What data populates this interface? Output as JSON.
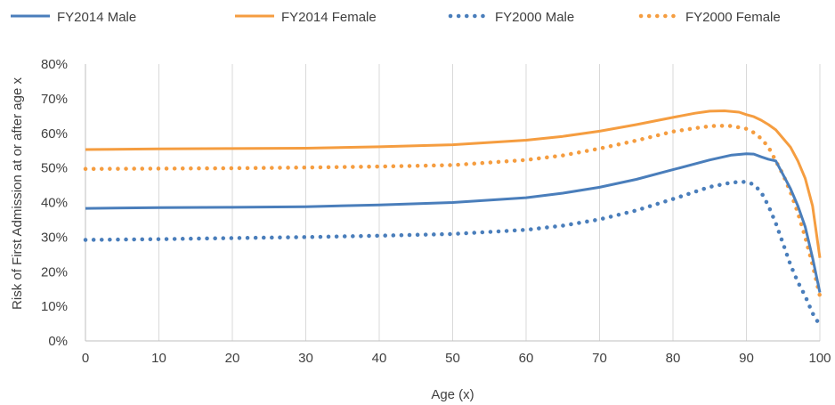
{
  "chart_data": {
    "type": "line",
    "xlabel": "Age (x)",
    "ylabel": "Risk of First Admission at or after age x",
    "xlim": [
      0,
      100
    ],
    "ylim": [
      0,
      0.8
    ],
    "x_ticks": [
      0,
      10,
      20,
      30,
      40,
      50,
      60,
      70,
      80,
      90,
      100
    ],
    "y_ticks": [
      0,
      0.1,
      0.2,
      0.3,
      0.4,
      0.5,
      0.6,
      0.7,
      0.8
    ],
    "x_tick_labels": [
      "0",
      "10",
      "20",
      "30",
      "40",
      "50",
      "60",
      "70",
      "80",
      "90",
      "100"
    ],
    "y_tick_labels": [
      "0%",
      "10%",
      "20%",
      "30%",
      "40%",
      "50%",
      "60%",
      "70%",
      "80%"
    ],
    "grid": "vertical",
    "legend": "top",
    "series": [
      {
        "name": "FY2014 Male",
        "color": "#4a7ebb",
        "style": "solid",
        "points": [
          [
            0,
            0.383
          ],
          [
            10,
            0.385
          ],
          [
            20,
            0.386
          ],
          [
            30,
            0.388
          ],
          [
            40,
            0.393
          ],
          [
            50,
            0.4
          ],
          [
            60,
            0.414
          ],
          [
            65,
            0.427
          ],
          [
            70,
            0.444
          ],
          [
            75,
            0.467
          ],
          [
            80,
            0.495
          ],
          [
            85,
            0.523
          ],
          [
            88,
            0.537
          ],
          [
            90,
            0.541
          ],
          [
            91,
            0.54
          ],
          [
            92,
            0.532
          ],
          [
            93,
            0.525
          ],
          [
            94,
            0.52
          ],
          [
            95,
            0.48
          ],
          [
            96,
            0.44
          ],
          [
            97,
            0.39
          ],
          [
            98,
            0.33
          ],
          [
            99,
            0.24
          ],
          [
            100,
            0.14
          ]
        ]
      },
      {
        "name": "FY2014 Female",
        "color": "#f59d40",
        "style": "solid",
        "points": [
          [
            0,
            0.553
          ],
          [
            10,
            0.555
          ],
          [
            20,
            0.556
          ],
          [
            30,
            0.557
          ],
          [
            40,
            0.561
          ],
          [
            50,
            0.567
          ],
          [
            60,
            0.58
          ],
          [
            65,
            0.591
          ],
          [
            70,
            0.606
          ],
          [
            75,
            0.625
          ],
          [
            80,
            0.646
          ],
          [
            83,
            0.658
          ],
          [
            85,
            0.664
          ],
          [
            87,
            0.665
          ],
          [
            89,
            0.661
          ],
          [
            90,
            0.654
          ],
          [
            91,
            0.648
          ],
          [
            92,
            0.638
          ],
          [
            93,
            0.625
          ],
          [
            94,
            0.61
          ],
          [
            95,
            0.585
          ],
          [
            96,
            0.56
          ],
          [
            97,
            0.52
          ],
          [
            98,
            0.47
          ],
          [
            99,
            0.39
          ],
          [
            100,
            0.24
          ]
        ]
      },
      {
        "name": "FY2000 Male",
        "color": "#4a7ebb",
        "style": "dotted",
        "points": [
          [
            0,
            0.292
          ],
          [
            10,
            0.294
          ],
          [
            20,
            0.297
          ],
          [
            30,
            0.3
          ],
          [
            40,
            0.304
          ],
          [
            50,
            0.309
          ],
          [
            60,
            0.321
          ],
          [
            65,
            0.333
          ],
          [
            70,
            0.351
          ],
          [
            75,
            0.377
          ],
          [
            80,
            0.41
          ],
          [
            85,
            0.445
          ],
          [
            88,
            0.458
          ],
          [
            90,
            0.46
          ],
          [
            91,
            0.452
          ],
          [
            92,
            0.43
          ],
          [
            93,
            0.39
          ],
          [
            94,
            0.34
          ],
          [
            95,
            0.28
          ],
          [
            96,
            0.22
          ],
          [
            97,
            0.17
          ],
          [
            98,
            0.13
          ],
          [
            99,
            0.08
          ],
          [
            100,
            0.045
          ]
        ]
      },
      {
        "name": "FY2000 Female",
        "color": "#f59d40",
        "style": "dotted",
        "points": [
          [
            0,
            0.497
          ],
          [
            10,
            0.498
          ],
          [
            20,
            0.499
          ],
          [
            30,
            0.501
          ],
          [
            40,
            0.504
          ],
          [
            50,
            0.508
          ],
          [
            60,
            0.523
          ],
          [
            65,
            0.536
          ],
          [
            70,
            0.556
          ],
          [
            75,
            0.579
          ],
          [
            80,
            0.605
          ],
          [
            84,
            0.618
          ],
          [
            86,
            0.622
          ],
          [
            88,
            0.621
          ],
          [
            90,
            0.613
          ],
          [
            91,
            0.602
          ],
          [
            92,
            0.585
          ],
          [
            93,
            0.56
          ],
          [
            94,
            0.52
          ],
          [
            95,
            0.48
          ],
          [
            96,
            0.43
          ],
          [
            97,
            0.37
          ],
          [
            98,
            0.3
          ],
          [
            99,
            0.22
          ],
          [
            100,
            0.13
          ]
        ]
      }
    ]
  }
}
